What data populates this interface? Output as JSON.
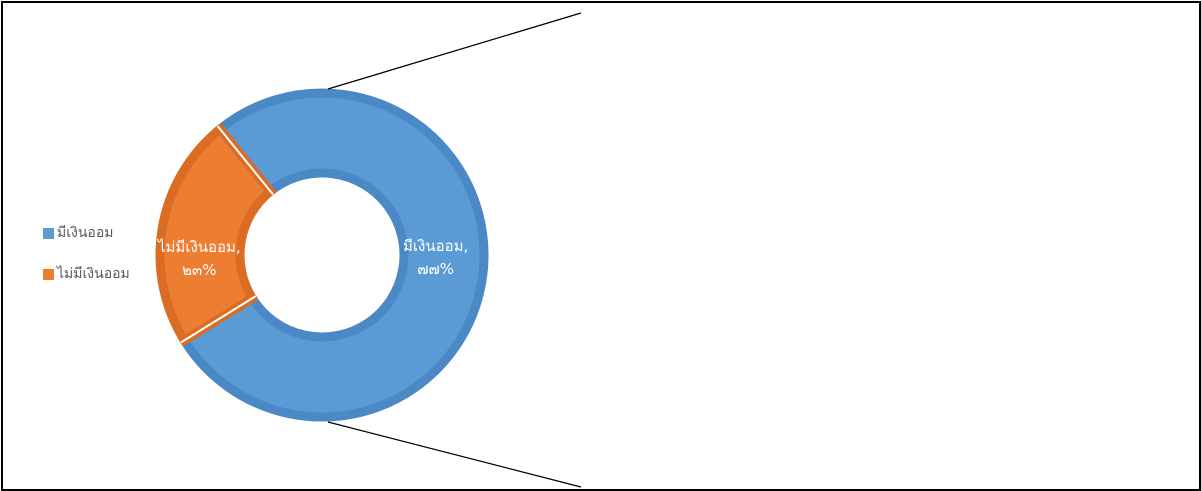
{
  "chart_data": {
    "type": "pie",
    "subtype": "doughnut",
    "categories": [
      "มีเงินออม",
      "ไม่มีเงินออม"
    ],
    "values": [
      77,
      23
    ],
    "labels": [
      {
        "name": "มีเงินออม,",
        "value": "๗๗%"
      },
      {
        "name": "ไม่มีเงินออม,",
        "value": "๒๓%"
      }
    ],
    "colors": [
      "#5B9BD5",
      "#ED7D31"
    ],
    "border_colors": [
      "#4A89C6",
      "#DA6C23"
    ],
    "legend_placement": "left",
    "title": ""
  }
}
